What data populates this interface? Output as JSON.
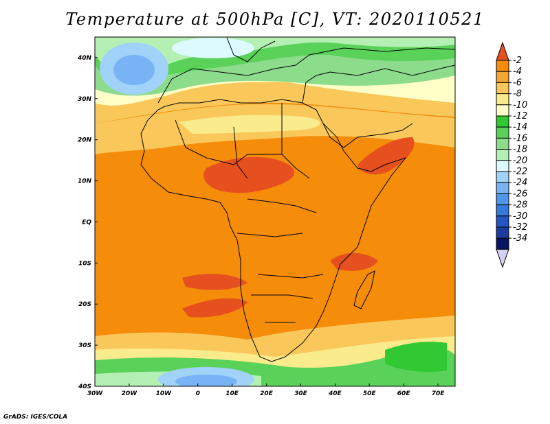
{
  "title": "Temperature at 500hPa [C], VT: 2020110521",
  "footer": "GrADS: IGES/COLA",
  "map": {
    "lon_labels": [
      "30W",
      "20W",
      "10W",
      "0",
      "10E",
      "20E",
      "30E",
      "40E",
      "50E",
      "60E",
      "70E"
    ],
    "lat_labels": [
      "40N",
      "30N",
      "20N",
      "10N",
      "EQ",
      "10S",
      "20S",
      "30S",
      "40S"
    ],
    "lon_range": [
      -30,
      75
    ],
    "lat_range": [
      -40,
      45
    ]
  },
  "colorbar": {
    "labels": [
      "-2",
      "-4",
      "-6",
      "-8",
      "-10",
      "-12",
      "-14",
      "-16",
      "-18",
      "-20",
      "-22",
      "-24",
      "-26",
      "-28",
      "-30",
      "-32",
      "-34"
    ],
    "colors": [
      "#e6501e",
      "#f58c0a",
      "#f5a532",
      "#fac85a",
      "#faeb8c",
      "#ffffc8",
      "#32c832",
      "#5ad25a",
      "#8cdc8c",
      "#b4f0b4",
      "#dcfaff",
      "#a0d2fa",
      "#78b4f5",
      "#5096eb",
      "#3778dc",
      "#2555c3",
      "#1e3ca0",
      "#0a1464",
      "#d2d2f0"
    ]
  }
}
